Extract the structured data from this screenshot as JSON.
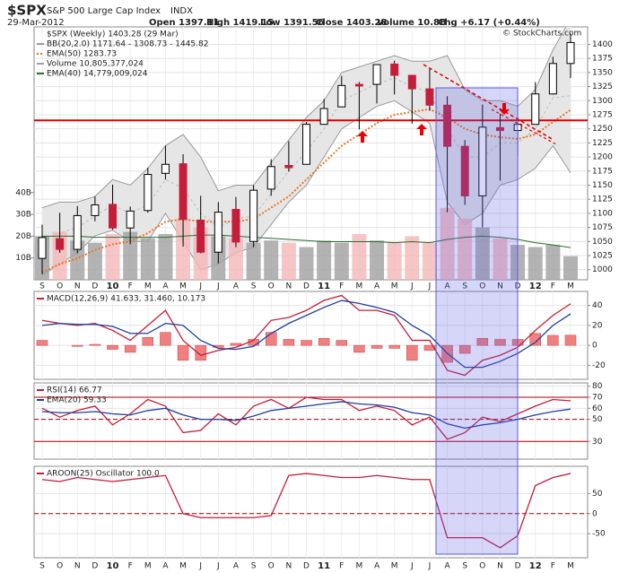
{
  "header": {
    "symbol": "$SPX",
    "name": "S&P 500 Large Cap Index",
    "exchange": "INDX",
    "date": "29-Mar-2012",
    "quote": [
      "Open 1397.11",
      "High 1419.15",
      "Low 1391.56",
      "Close 1403.28",
      "Volume 10.8B",
      "Chg +6.17 (+0.44%)"
    ],
    "watermark": "© StockCharts.com"
  },
  "chart_data": [
    {
      "type": "candlestick",
      "name": "$SPX (Weekly) 1403.28 (29 Mar)",
      "categories": [
        "S",
        "O",
        "N",
        "D",
        "10",
        "F",
        "M",
        "A",
        "M",
        "J",
        "J",
        "A",
        "S",
        "O",
        "N",
        "D",
        "11",
        "F",
        "M",
        "A",
        "M",
        "J",
        "J",
        "A",
        "S",
        "O",
        "N",
        "D",
        "12",
        "F",
        "M"
      ],
      "open": [
        1020,
        1055,
        1036,
        1096,
        1116,
        1074,
        1105,
        1171,
        1188,
        1088,
        1031,
        1107,
        1050,
        1143,
        1185,
        1187,
        1258,
        1289,
        1329,
        1329,
        1365,
        1345,
        1321,
        1292,
        1219,
        1131,
        1252,
        1247,
        1258,
        1312,
        1366
      ],
      "high": [
        1080,
        1101,
        1113,
        1130,
        1151,
        1112,
        1181,
        1220,
        1205,
        1131,
        1120,
        1129,
        1150,
        1196,
        1228,
        1262,
        1303,
        1344,
        1333,
        1364,
        1371,
        1346,
        1357,
        1308,
        1230,
        1293,
        1277,
        1270,
        1333,
        1378,
        1419.15
      ],
      "low": [
        992,
        1030,
        1029,
        1086,
        1071,
        1045,
        1101,
        1160,
        1041,
        1029,
        1011,
        1040,
        1040,
        1131,
        1174,
        1187,
        1257,
        1289,
        1249,
        1295,
        1311,
        1259,
        1282,
        1102,
        1115,
        1075,
        1158,
        1202,
        1258,
        1311,
        1340
      ],
      "close": [
        1057,
        1036,
        1096,
        1115,
        1074,
        1104,
        1169,
        1187,
        1089,
        1031,
        1102,
        1049,
        1141,
        1183,
        1181,
        1258,
        1286,
        1327,
        1326,
        1364,
        1345,
        1321,
        1292,
        1219,
        1131,
        1253,
        1247,
        1258,
        1312,
        1366,
        1403.28
      ],
      "up_color": "#000000",
      "down_color": "#c41e3a",
      "bands": {
        "name": "BB(20,2.0) 1171.64 - 1308.73 - 1445.82",
        "color": "#999999",
        "upper": [
          1110,
          1120,
          1120,
          1130,
          1160,
          1150,
          1180,
          1220,
          1240,
          1200,
          1140,
          1150,
          1150,
          1190,
          1230,
          1270,
          1300,
          1350,
          1360,
          1370,
          1380,
          1370,
          1370,
          1380,
          1320,
          1300,
          1300,
          1290,
          1320,
          1390,
          1445.82
        ],
        "middle": [
          1050,
          1065,
          1075,
          1095,
          1115,
          1100,
          1115,
          1160,
          1145,
          1100,
          1075,
          1090,
          1095,
          1135,
          1175,
          1210,
          1250,
          1300,
          1315,
          1330,
          1340,
          1325,
          1315,
          1250,
          1200,
          1200,
          1225,
          1225,
          1250,
          1305,
          1308.73
        ],
        "lower": [
          990,
          1010,
          1030,
          1060,
          1070,
          1050,
          1050,
          1100,
          1050,
          1000,
          1010,
          1030,
          1040,
          1080,
          1120,
          1150,
          1200,
          1250,
          1270,
          1290,
          1300,
          1280,
          1260,
          1120,
          1080,
          1100,
          1150,
          1160,
          1180,
          1220,
          1171.64
        ]
      },
      "series": [
        {
          "name": "EMA(50) 1283.73",
          "color": "#e87722",
          "values": [
            995,
            1010,
            1020,
            1035,
            1045,
            1050,
            1065,
            1085,
            1090,
            1085,
            1085,
            1085,
            1090,
            1110,
            1130,
            1160,
            1190,
            1220,
            1240,
            1260,
            1275,
            1280,
            1285,
            1270,
            1250,
            1240,
            1235,
            1232,
            1240,
            1262,
            1283.73
          ]
        },
        {
          "name": "Volume 10,805,377,024",
          "color": "#a0a0a0",
          "axis": "y2",
          "values": [
            20,
            22,
            18,
            17,
            21,
            22,
            19,
            21,
            28,
            24,
            20,
            19,
            17,
            18,
            17,
            15,
            18,
            17,
            21,
            18,
            17,
            20,
            17,
            33,
            28,
            24,
            19,
            16,
            15,
            16,
            10.81
          ]
        },
        {
          "name": "EMA(40) 14,779,009,024",
          "color": "#2e6b2e",
          "axis": "y2",
          "values": [
            20,
            20,
            20,
            19.5,
            19.5,
            19.5,
            19.5,
            19.5,
            20,
            20.5,
            20.5,
            20,
            19.5,
            19,
            18.5,
            18,
            17.5,
            17.5,
            17.5,
            17.5,
            17,
            17.5,
            17,
            18.5,
            19.5,
            20,
            19.5,
            18.5,
            17,
            16,
            14.78
          ]
        }
      ],
      "ylim": [
        982,
        1431
      ],
      "yticks": [
        1000,
        1025,
        1050,
        1075,
        1100,
        1125,
        1150,
        1175,
        1200,
        1225,
        1250,
        1275,
        1300,
        1325,
        1350,
        1375,
        1400
      ],
      "y2lim": [
        0,
        116
      ],
      "y2ticks": [
        {
          "value": 10,
          "label": "10B"
        },
        {
          "value": 20,
          "label": "20B"
        },
        {
          "value": 30,
          "label": "30B"
        },
        {
          "value": 40,
          "label": "40B"
        }
      ],
      "hline": 1265,
      "hline_color": "#dd0000",
      "grid": true
    },
    {
      "type": "line",
      "legend": "MACD(12,26,9) 41.633, 31.460, 10.173",
      "series": [
        {
          "kind": "bar",
          "color": "#f08080",
          "values": [
            5,
            0,
            -1,
            1,
            -4,
            -7,
            8,
            13,
            -15,
            -15,
            -2,
            2,
            6,
            13,
            6,
            5,
            7,
            5,
            -7,
            -3,
            -3,
            -15,
            -5,
            -17,
            -8,
            7,
            6,
            6,
            12,
            10,
            10.173
          ]
        },
        {
          "color": "#c41e3a",
          "values": [
            25,
            22,
            20,
            22,
            15,
            5,
            20,
            35,
            5,
            -10,
            -5,
            -2,
            5,
            25,
            28,
            35,
            45,
            50,
            35,
            35,
            30,
            5,
            5,
            -25,
            -30,
            -15,
            -10,
            -2,
            15,
            30,
            41.633
          ]
        },
        {
          "color": "#1f3f9f",
          "values": [
            20,
            22,
            21,
            21,
            19,
            12,
            12,
            22,
            20,
            5,
            -3,
            -4,
            -1,
            12,
            22,
            30,
            38,
            45,
            42,
            38,
            33,
            20,
            10,
            -8,
            -22,
            -22,
            -16,
            -8,
            3,
            20,
            31.46
          ]
        }
      ],
      "ylim": [
        -34,
        54
      ],
      "yticks": [
        -20,
        0,
        20,
        40
      ]
    },
    {
      "type": "line",
      "series": [
        {
          "name": "RSI(14) 66.77",
          "color": "#c41e3a",
          "values": [
            60,
            52,
            58,
            62,
            45,
            55,
            68,
            62,
            38,
            40,
            55,
            45,
            62,
            68,
            60,
            70,
            68,
            68,
            58,
            62,
            58,
            45,
            52,
            32,
            38,
            52,
            48,
            55,
            62,
            68,
            66.77
          ]
        },
        {
          "name": "EMA(20) 59.33",
          "color": "#1f3f9f",
          "values": [
            57,
            56,
            56,
            57,
            55,
            54,
            58,
            60,
            54,
            50,
            50,
            49,
            53,
            58,
            60,
            62,
            64,
            66,
            64,
            63,
            61,
            56,
            54,
            46,
            42,
            45,
            47,
            50,
            54,
            57,
            59.33
          ]
        }
      ],
      "hlines": [
        {
          "value": 70,
          "dash": false
        },
        {
          "value": 50,
          "dash": true
        },
        {
          "value": 30,
          "dash": false
        }
      ],
      "hline_color": "#aa0000",
      "ylim": [
        14,
        83
      ],
      "yticks": [
        30,
        50,
        60,
        70,
        80
      ]
    },
    {
      "type": "line",
      "series": [
        {
          "name": "AROON(25) Oscillator 100.0",
          "color": "#c41e3a",
          "values": [
            85,
            80,
            90,
            85,
            80,
            85,
            90,
            95,
            0,
            -10,
            -10,
            -10,
            -10,
            -5,
            95,
            100,
            95,
            90,
            90,
            95,
            90,
            85,
            85,
            -60,
            -60,
            -60,
            -85,
            -55,
            70,
            90,
            100
          ]
        }
      ],
      "hlines": [
        {
          "value": 0,
          "dash": true
        }
      ],
      "hline_color": "#aa0000",
      "ylim": [
        -110,
        118
      ],
      "yticks": [
        -50,
        0,
        50
      ]
    }
  ]
}
